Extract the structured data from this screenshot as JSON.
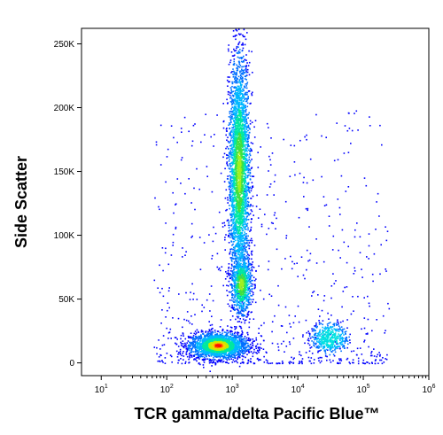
{
  "chart_data": {
    "type": "scatter",
    "subtype": "flow-cytometry-density-plot",
    "xlabel": "TCR gamma/delta Pacific Blue™",
    "ylabel": "Side Scatter",
    "x_scale": "log",
    "xlim": [
      5,
      1000000
    ],
    "ylim": [
      -10000,
      262144
    ],
    "x_ticks": [
      {
        "value": 10,
        "base": "10",
        "exp": "1"
      },
      {
        "value": 100,
        "base": "10",
        "exp": "2"
      },
      {
        "value": 1000,
        "base": "10",
        "exp": "3"
      },
      {
        "value": 10000,
        "base": "10",
        "exp": "4"
      },
      {
        "value": 100000,
        "base": "10",
        "exp": "5"
      },
      {
        "value": 1000000,
        "base": "10",
        "exp": "6"
      }
    ],
    "y_ticks": [
      {
        "value": 0,
        "label": "0"
      },
      {
        "value": 50000,
        "label": "50K"
      },
      {
        "value": 100000,
        "label": "100K"
      },
      {
        "value": 150000,
        "label": "150K"
      },
      {
        "value": 200000,
        "label": "200K"
      },
      {
        "value": 250000,
        "label": "250K"
      }
    ],
    "populations": [
      {
        "x_center": 600,
        "y_center": 14000,
        "log_x_sd": 0.22,
        "y_sd": 5000,
        "count": 2200,
        "peak": "red"
      },
      {
        "x_center": 1250,
        "y_center": 150000,
        "log_x_sd": 0.08,
        "y_sd": 45000,
        "count": 3200,
        "peak": "green"
      },
      {
        "x_center": 1350,
        "y_center": 62000,
        "log_x_sd": 0.08,
        "y_sd": 12000,
        "count": 800,
        "peak": "green"
      },
      {
        "x_center": 30000,
        "y_center": 20000,
        "log_x_sd": 0.14,
        "y_sd": 6000,
        "count": 450,
        "peak": "cyan"
      }
    ],
    "grid": false,
    "legend": "none"
  }
}
